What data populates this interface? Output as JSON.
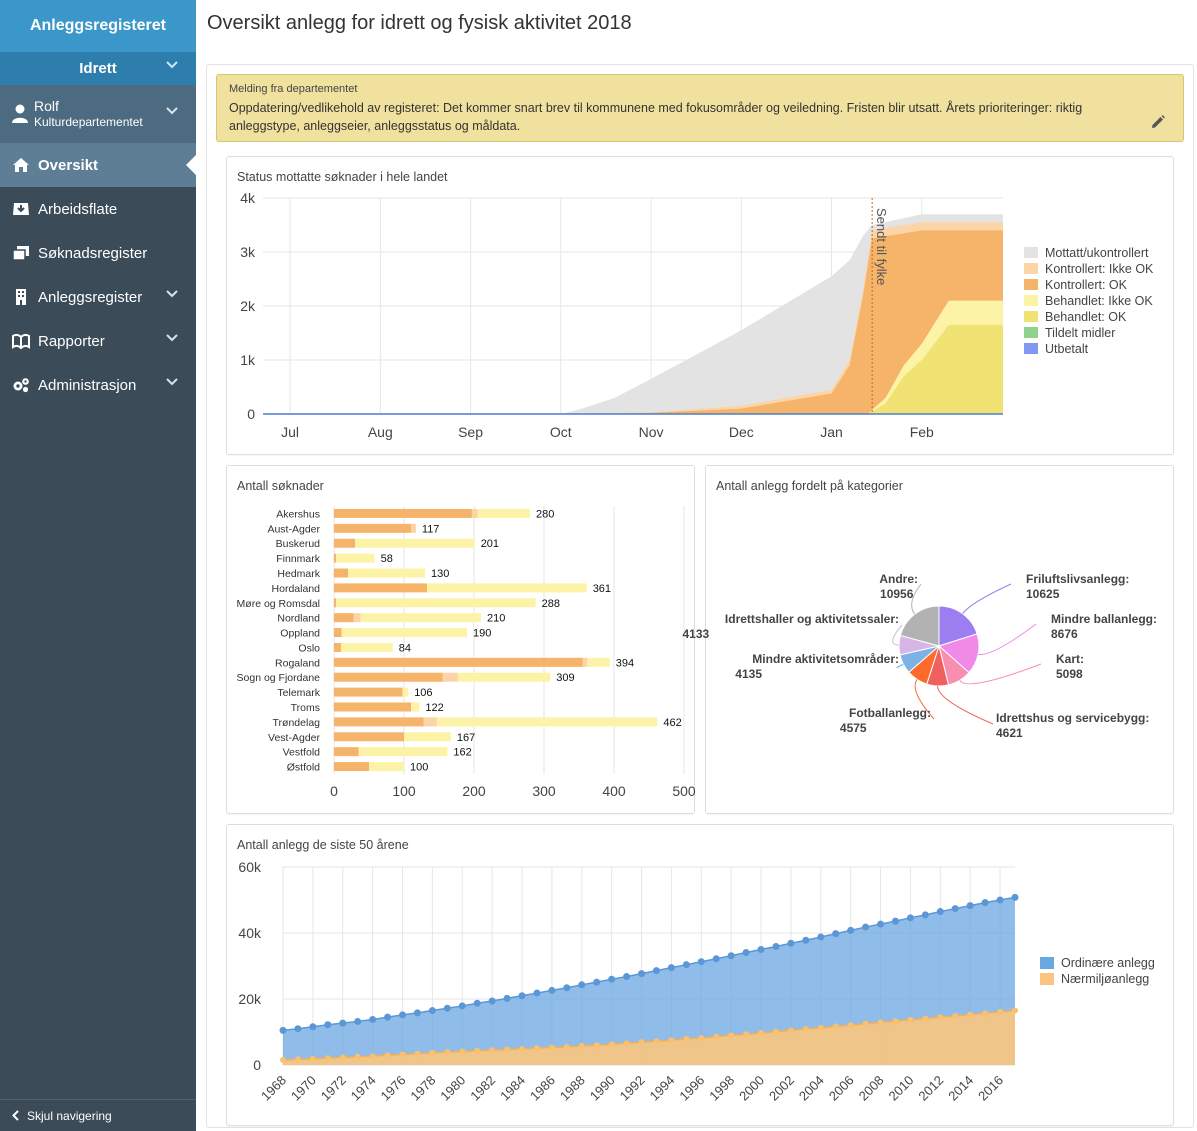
{
  "app": {
    "title": "Anleggsregisteret"
  },
  "sidebar": {
    "org": "Idrett",
    "user": {
      "name": "Rolf",
      "org": "Kulturdepartementet"
    },
    "items": [
      {
        "label": "Oversikt",
        "icon": "home-icon"
      },
      {
        "label": "Arbeidsflate",
        "icon": "inbox-icon"
      },
      {
        "label": "Søknadsregister",
        "icon": "documents-icon"
      },
      {
        "label": "Anleggsregister",
        "icon": "building-icon"
      },
      {
        "label": "Rapporter",
        "icon": "book-icon"
      },
      {
        "label": "Administrasjon",
        "icon": "cogs-icon"
      }
    ],
    "hide_label": "Skjul navigering"
  },
  "page": {
    "title": "Oversikt anlegg for idrett og fysisk aktivitet 2018"
  },
  "message": {
    "title": "Melding fra departementet",
    "body": "Oppdatering/vedlikehold av registeret: Det kommer snart brev til kommunene med fokusområder og veiledning. Fristen blir utsatt. Årets prioriteringer: riktig anleggstype, anleggseier, anleggsstatus og måldata."
  },
  "chart_data": [
    {
      "id": "status",
      "type": "area",
      "title": "Status mottatte søknader i hele landet",
      "x_labels": [
        "Jul",
        "Aug",
        "Sep",
        "Oct",
        "Nov",
        "Dec",
        "Jan",
        "Feb"
      ],
      "y_ticks": [
        "0",
        "1k",
        "2k",
        "3k",
        "4k"
      ],
      "ylim": [
        0,
        4000
      ],
      "marker": {
        "label": "Sendt til fylke",
        "x": 6.45
      },
      "x_range": [
        -0.3,
        7.9
      ],
      "series": [
        {
          "name": "Mottatt/ukontrollert",
          "color": "#e3e3e3",
          "points": [
            [
              3,
              0
            ],
            [
              3.2,
              80
            ],
            [
              3.6,
              300
            ],
            [
              4,
              650
            ],
            [
              4.5,
              1100
            ],
            [
              5,
              1550
            ],
            [
              5.5,
              2050
            ],
            [
              6,
              2550
            ],
            [
              6.2,
              2850
            ],
            [
              6.35,
              3300
            ],
            [
              6.45,
              3500
            ],
            [
              7,
              3700
            ],
            [
              7.9,
              3700
            ]
          ]
        },
        {
          "name": "Kontrollert: Ikke OK",
          "color": "#fbd5a8",
          "points": [
            [
              3,
              0
            ],
            [
              4,
              30
            ],
            [
              5,
              150
            ],
            [
              6,
              450
            ],
            [
              6.2,
              1000
            ],
            [
              6.35,
              2300
            ],
            [
              6.45,
              3400
            ],
            [
              7,
              3550
            ],
            [
              7.9,
              3550
            ]
          ]
        },
        {
          "name": "Kontrollert: OK",
          "color": "#f6b36a",
          "points": [
            [
              3,
              0
            ],
            [
              4,
              20
            ],
            [
              5,
              100
            ],
            [
              6,
              380
            ],
            [
              6.2,
              900
            ],
            [
              6.35,
              2200
            ],
            [
              6.45,
              3250
            ],
            [
              7,
              3400
            ],
            [
              7.9,
              3400
            ]
          ]
        },
        {
          "name": "Behandlet: Ikke OK",
          "color": "#fdf3a6",
          "points": [
            [
              6.4,
              0
            ],
            [
              6.6,
              300
            ],
            [
              6.8,
              900
            ],
            [
              7,
              1300
            ],
            [
              7.3,
              2100
            ],
            [
              7.9,
              2100
            ]
          ]
        },
        {
          "name": "Behandlet: OK",
          "color": "#f1e274",
          "points": [
            [
              6.4,
              0
            ],
            [
              6.6,
              200
            ],
            [
              6.8,
              700
            ],
            [
              7,
              1000
            ],
            [
              7.3,
              1650
            ],
            [
              7.9,
              1650
            ]
          ]
        },
        {
          "name": "Tildelt midler",
          "color": "#8dd38a",
          "points": []
        },
        {
          "name": "Utbetalt",
          "color": "#8098f2",
          "points": []
        }
      ]
    },
    {
      "id": "soknader",
      "type": "bar",
      "title": "Antall søknader",
      "categories": [
        "Akershus",
        "Aust-Agder",
        "Buskerud",
        "Finnmark",
        "Hedmark",
        "Hordaland",
        "Møre og Romsdal",
        "Nordland",
        "Oppland",
        "Oslo",
        "Rogaland",
        "Sogn og Fjordane",
        "Telemark",
        "Troms",
        "Trøndelag",
        "Vest-Agder",
        "Vestfold",
        "Østfold"
      ],
      "totals": [
        280,
        117,
        201,
        58,
        130,
        361,
        288,
        210,
        190,
        84,
        394,
        309,
        106,
        122,
        462,
        167,
        162,
        100
      ],
      "segments": [
        [
          197,
          8,
          75
        ],
        [
          110,
          7,
          0
        ],
        [
          30,
          0,
          171
        ],
        [
          3,
          0,
          55
        ],
        [
          20,
          0,
          110
        ],
        [
          133,
          0,
          228
        ],
        [
          3,
          0,
          285
        ],
        [
          28,
          10,
          172
        ],
        [
          11,
          0,
          179
        ],
        [
          10,
          0,
          74
        ],
        [
          355,
          7,
          32
        ],
        [
          155,
          22,
          132
        ],
        [
          98,
          0,
          8
        ],
        [
          110,
          0,
          12
        ],
        [
          128,
          19,
          315
        ],
        [
          100,
          0,
          67
        ],
        [
          35,
          0,
          127
        ],
        [
          50,
          0,
          50
        ]
      ],
      "segment_colors": [
        "#f6b36a",
        "#fbd5a8",
        "#fdf3a6"
      ],
      "x_ticks": [
        0,
        100,
        200,
        300,
        400,
        500
      ],
      "xlim": [
        0,
        500
      ]
    },
    {
      "id": "kategorier",
      "type": "pie",
      "title": "Antall anlegg fordelt på kategorier",
      "slices": [
        {
          "label": "Friluftslivsanlegg:",
          "value": 10625,
          "color": "#9c7ef0"
        },
        {
          "label": "Mindre ballanlegg:",
          "value": 8676,
          "color": "#f08ae6"
        },
        {
          "label": "Kart:",
          "value": 5098,
          "color": "#f88fb0"
        },
        {
          "label": "Idrettshus og servicebygg:",
          "value": 4621,
          "color": "#f0605f"
        },
        {
          "label": "Fotballanlegg:",
          "value": 4575,
          "color": "#fc6a2c"
        },
        {
          "label": "Mindre aktivitetsområder:",
          "value": 4135,
          "color": "#7cb2e6"
        },
        {
          "label": "Idrettshaller og aktivitetssaler:",
          "value": 4133,
          "color": "#d7b6e6"
        },
        {
          "label": "Andre:",
          "value": 10956,
          "color": "#b2b2b2"
        }
      ]
    },
    {
      "id": "anlegg50",
      "type": "area",
      "title": "Antall anlegg de siste 50 årene",
      "years": [
        1968,
        1969,
        1970,
        1971,
        1972,
        1973,
        1974,
        1975,
        1976,
        1977,
        1978,
        1979,
        1980,
        1981,
        1982,
        1983,
        1984,
        1985,
        1986,
        1987,
        1988,
        1989,
        1990,
        1991,
        1992,
        1993,
        1994,
        1995,
        1996,
        1997,
        1998,
        1999,
        2000,
        2001,
        2002,
        2003,
        2004,
        2005,
        2006,
        2007,
        2008,
        2009,
        2010,
        2011,
        2012,
        2013,
        2014,
        2015,
        2016,
        2017
      ],
      "x_tick_labels": [
        "1968",
        "1970",
        "1972",
        "1974",
        "1976",
        "1978",
        "1980",
        "1982",
        "1984",
        "1986",
        "1988",
        "1990",
        "1992",
        "1994",
        "1996",
        "1998",
        "2000",
        "2002",
        "2004",
        "2006",
        "2008",
        "2010",
        "2012",
        "2014",
        "2016"
      ],
      "y_ticks": [
        "0",
        "20k",
        "40k",
        "60k"
      ],
      "ylim": [
        0,
        60000
      ],
      "series": [
        {
          "name": "Ordinære anlegg",
          "color": "#6aa6e0",
          "values": [
            10500,
            11000,
            11600,
            12200,
            12700,
            13200,
            13800,
            14500,
            15200,
            15800,
            16500,
            17200,
            17900,
            18700,
            19400,
            20200,
            21000,
            21800,
            22600,
            23400,
            24300,
            25100,
            26000,
            26800,
            27700,
            28600,
            29500,
            30400,
            31300,
            32200,
            33100,
            34100,
            35000,
            35900,
            36900,
            37800,
            38800,
            39800,
            40800,
            41800,
            42700,
            43600,
            44600,
            45500,
            46500,
            47400,
            48300,
            49200,
            50000,
            50800
          ]
        },
        {
          "name": "Nærmiljøanlegg",
          "color": "#fbc57f",
          "values": [
            1500,
            1700,
            1900,
            2100,
            2300,
            2500,
            2700,
            3000,
            3200,
            3400,
            3700,
            3900,
            4100,
            4300,
            4500,
            4700,
            4900,
            5100,
            5300,
            5500,
            5800,
            6000,
            6300,
            6600,
            6900,
            7200,
            7500,
            7900,
            8200,
            8600,
            9000,
            9300,
            9700,
            10100,
            10500,
            10900,
            11300,
            11700,
            12100,
            12500,
            12900,
            13300,
            13700,
            14100,
            14500,
            14900,
            15300,
            15700,
            16100,
            16500
          ]
        }
      ]
    }
  ]
}
